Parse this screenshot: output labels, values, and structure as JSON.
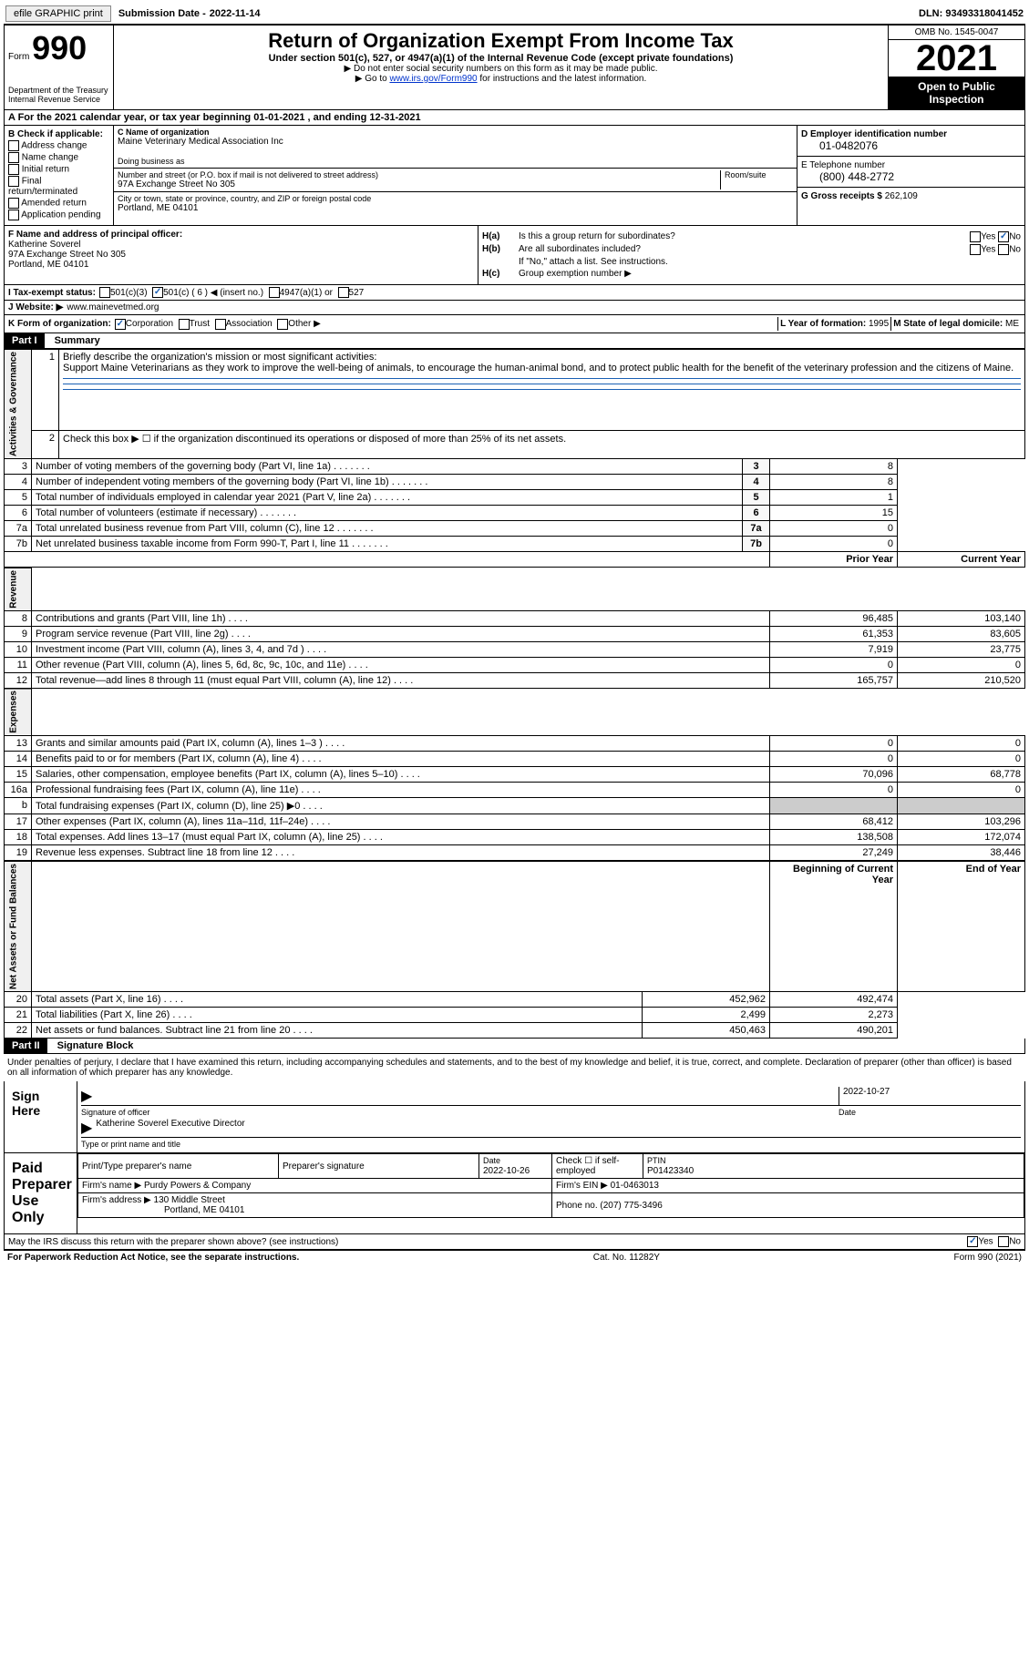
{
  "topbar": {
    "efile_btn": "efile GRAPHIC print",
    "sub_date_label": "Submission Date - ",
    "sub_date": "2022-11-14",
    "dln_label": "DLN: ",
    "dln": "93493318041452"
  },
  "header": {
    "form_label": "Form",
    "form_num": "990",
    "dept": "Department of the Treasury\nInternal Revenue Service",
    "title": "Return of Organization Exempt From Income Tax",
    "subtitle": "Under section 501(c), 527, or 4947(a)(1) of the Internal Revenue Code (except private foundations)",
    "note1": "▶ Do not enter social security numbers on this form as it may be made public.",
    "note2_pre": "▶ Go to ",
    "note2_link": "www.irs.gov/Form990",
    "note2_post": " for instructions and the latest information.",
    "omb": "OMB No. 1545-0047",
    "year": "2021",
    "inspect": "Open to Public Inspection"
  },
  "row_a": "A For the 2021 calendar year, or tax year beginning 01-01-2021    , and ending 12-31-2021",
  "section_b": {
    "title": "B Check if applicable:",
    "items": [
      "Address change",
      "Name change",
      "Initial return",
      "Final return/terminated",
      "Amended return",
      "Application pending"
    ]
  },
  "section_c": {
    "name_lbl": "C Name of organization",
    "name": "Maine Veterinary Medical Association Inc",
    "dba_lbl": "Doing business as",
    "dba": "",
    "addr_lbl": "Number and street (or P.O. box if mail is not delivered to street address)",
    "room_lbl": "Room/suite",
    "addr": "97A Exchange Street No 305",
    "city_lbl": "City or town, state or province, country, and ZIP or foreign postal code",
    "city": "Portland, ME  04101"
  },
  "section_d": {
    "ein_lbl": "D Employer identification number",
    "ein": "01-0482076",
    "phone_lbl": "E Telephone number",
    "phone": "(800) 448-2772",
    "gross_lbl": "G Gross receipts $ ",
    "gross": "262,109"
  },
  "section_f": {
    "lbl": "F  Name and address of principal officer:",
    "name": "Katherine Soverel",
    "addr1": "97A Exchange Street No 305",
    "addr2": "Portland, ME  04101"
  },
  "section_h": {
    "a_lbl": "H(a)",
    "a_txt": "Is this a group return for subordinates?",
    "b_lbl": "H(b)",
    "b_txt": "Are all subordinates included?",
    "b_note": "If \"No,\" attach a list. See instructions.",
    "c_lbl": "H(c)",
    "c_txt": "Group exemption number ▶",
    "yes": "Yes",
    "no": "No"
  },
  "row_i": {
    "lbl": "I  Tax-exempt status:",
    "opts": [
      "501(c)(3)",
      "501(c) ( 6 ) ◀ (insert no.)",
      "4947(a)(1) or",
      "527"
    ]
  },
  "row_j": {
    "lbl": "J  Website: ▶",
    "val": "www.mainevetmed.org"
  },
  "row_k": {
    "lbl": "K Form of organization:",
    "opts": [
      "Corporation",
      "Trust",
      "Association",
      "Other ▶"
    ],
    "l_lbl": "L Year of formation: ",
    "l_val": "1995",
    "m_lbl": "M State of legal domicile: ",
    "m_val": "ME"
  },
  "part1": {
    "num": "Part I",
    "title": "Summary"
  },
  "summary": {
    "tab1": "Activities & Governance",
    "tab2": "Revenue",
    "tab3": "Expenses",
    "tab4": "Net Assets or Fund Balances",
    "line1_lbl": "Briefly describe the organization's mission or most significant activities:",
    "line1_txt": "Support Maine Veterinarians as they work to improve the well-being of animals, to encourage the human-animal bond, and to protect public health for the benefit of the veterinary profession and the citizens of Maine.",
    "line2": "Check this box ▶ ☐  if the organization discontinued its operations or disposed of more than 25% of its net assets.",
    "col_prior": "Prior Year",
    "col_current": "Current Year",
    "col_begin": "Beginning of Current Year",
    "col_end": "End of Year",
    "rows_gov": [
      {
        "n": "3",
        "t": "Number of voting members of the governing body (Part VI, line 1a)",
        "b": "3",
        "v": "8"
      },
      {
        "n": "4",
        "t": "Number of independent voting members of the governing body (Part VI, line 1b)",
        "b": "4",
        "v": "8"
      },
      {
        "n": "5",
        "t": "Total number of individuals employed in calendar year 2021 (Part V, line 2a)",
        "b": "5",
        "v": "1"
      },
      {
        "n": "6",
        "t": "Total number of volunteers (estimate if necessary)",
        "b": "6",
        "v": "15"
      },
      {
        "n": "7a",
        "t": "Total unrelated business revenue from Part VIII, column (C), line 12",
        "b": "7a",
        "v": "0"
      },
      {
        "n": "7b",
        "t": "Net unrelated business taxable income from Form 990-T, Part I, line 11",
        "b": "7b",
        "v": "0"
      }
    ],
    "rows_rev": [
      {
        "n": "8",
        "t": "Contributions and grants (Part VIII, line 1h)",
        "p": "96,485",
        "c": "103,140"
      },
      {
        "n": "9",
        "t": "Program service revenue (Part VIII, line 2g)",
        "p": "61,353",
        "c": "83,605"
      },
      {
        "n": "10",
        "t": "Investment income (Part VIII, column (A), lines 3, 4, and 7d )",
        "p": "7,919",
        "c": "23,775"
      },
      {
        "n": "11",
        "t": "Other revenue (Part VIII, column (A), lines 5, 6d, 8c, 9c, 10c, and 11e)",
        "p": "0",
        "c": "0"
      },
      {
        "n": "12",
        "t": "Total revenue—add lines 8 through 11 (must equal Part VIII, column (A), line 12)",
        "p": "165,757",
        "c": "210,520"
      }
    ],
    "rows_exp": [
      {
        "n": "13",
        "t": "Grants and similar amounts paid (Part IX, column (A), lines 1–3 )",
        "p": "0",
        "c": "0"
      },
      {
        "n": "14",
        "t": "Benefits paid to or for members (Part IX, column (A), line 4)",
        "p": "0",
        "c": "0"
      },
      {
        "n": "15",
        "t": "Salaries, other compensation, employee benefits (Part IX, column (A), lines 5–10)",
        "p": "70,096",
        "c": "68,778"
      },
      {
        "n": "16a",
        "t": "Professional fundraising fees (Part IX, column (A), line 11e)",
        "p": "0",
        "c": "0"
      },
      {
        "n": "b",
        "t": "Total fundraising expenses (Part IX, column (D), line 25) ▶0",
        "p": "",
        "c": "",
        "shade": true
      },
      {
        "n": "17",
        "t": "Other expenses (Part IX, column (A), lines 11a–11d, 11f–24e)",
        "p": "68,412",
        "c": "103,296"
      },
      {
        "n": "18",
        "t": "Total expenses. Add lines 13–17 (must equal Part IX, column (A), line 25)",
        "p": "138,508",
        "c": "172,074"
      },
      {
        "n": "19",
        "t": "Revenue less expenses. Subtract line 18 from line 12",
        "p": "27,249",
        "c": "38,446"
      }
    ],
    "rows_net": [
      {
        "n": "20",
        "t": "Total assets (Part X, line 16)",
        "p": "452,962",
        "c": "492,474"
      },
      {
        "n": "21",
        "t": "Total liabilities (Part X, line 26)",
        "p": "2,499",
        "c": "2,273"
      },
      {
        "n": "22",
        "t": "Net assets or fund balances. Subtract line 21 from line 20",
        "p": "450,463",
        "c": "490,201"
      }
    ]
  },
  "part2": {
    "num": "Part II",
    "title": "Signature Block"
  },
  "declare": "Under penalties of perjury, I declare that I have examined this return, including accompanying schedules and statements, and to the best of my knowledge and belief, it is true, correct, and complete. Declaration of preparer (other than officer) is based on all information of which preparer has any knowledge.",
  "sign": {
    "lbl": "Sign Here",
    "sig_lbl": "Signature of officer",
    "date": "2022-10-27",
    "date_lbl": "Date",
    "name": "Katherine Soverel  Executive Director",
    "name_lbl": "Type or print name and title"
  },
  "prep": {
    "lbl": "Paid Preparer Use Only",
    "col1": "Print/Type preparer's name",
    "col2": "Preparer's signature",
    "col3_lbl": "Date",
    "col3": "2022-10-26",
    "col4": "Check ☐ if self-employed",
    "col5_lbl": "PTIN",
    "col5": "P01423340",
    "firm_lbl": "Firm's name    ▶ ",
    "firm": "Purdy Powers & Company",
    "ein_lbl": "Firm's EIN ▶ ",
    "ein": "01-0463013",
    "addr_lbl": "Firm's address ▶ ",
    "addr1": "130 Middle Street",
    "addr2": "Portland, ME  04101",
    "phone_lbl": "Phone no. ",
    "phone": "(207) 775-3496"
  },
  "discuss": {
    "txt": "May the IRS discuss this return with the preparer shown above? (see instructions)",
    "yes": "Yes",
    "no": "No"
  },
  "footer": {
    "left": "For Paperwork Reduction Act Notice, see the separate instructions.",
    "mid": "Cat. No. 11282Y",
    "right": "Form 990 (2021)"
  }
}
